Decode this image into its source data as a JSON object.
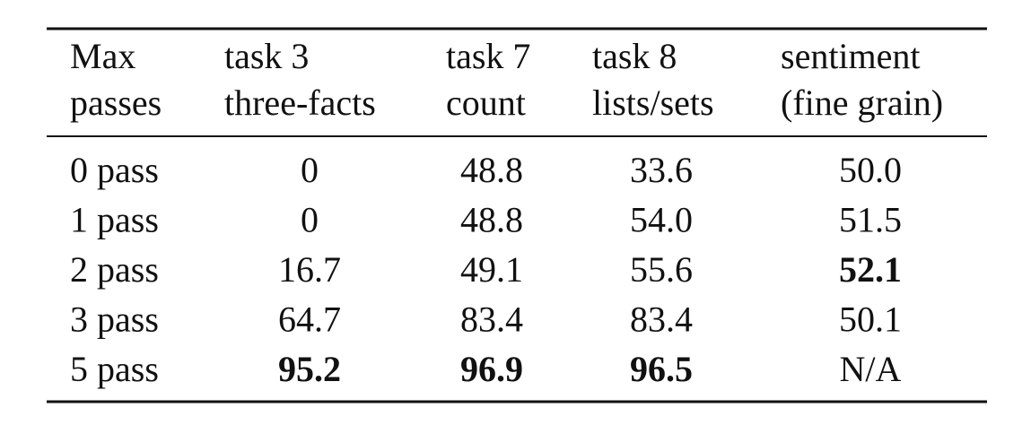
{
  "table": {
    "header": [
      [
        "Max",
        "passes"
      ],
      [
        "task 3",
        "three-facts"
      ],
      [
        "task 7",
        "count"
      ],
      [
        "task 8",
        "lists/sets"
      ],
      [
        "sentiment",
        "(fine grain)"
      ]
    ],
    "rows": [
      [
        "0 pass",
        "0",
        "48.8",
        "33.6",
        "50.0"
      ],
      [
        "1 pass",
        "0",
        "48.8",
        "54.0",
        "51.5"
      ],
      [
        "2 pass",
        "16.7",
        "49.1",
        "55.6",
        "52.1"
      ],
      [
        "3 pass",
        "64.7",
        "83.4",
        "83.4",
        "50.1"
      ],
      [
        "5 pass",
        "95.2",
        "96.9",
        "96.5",
        "N/A"
      ]
    ],
    "bold": [
      [
        2,
        4
      ],
      [
        4,
        1
      ],
      [
        4,
        2
      ],
      [
        4,
        3
      ]
    ]
  }
}
